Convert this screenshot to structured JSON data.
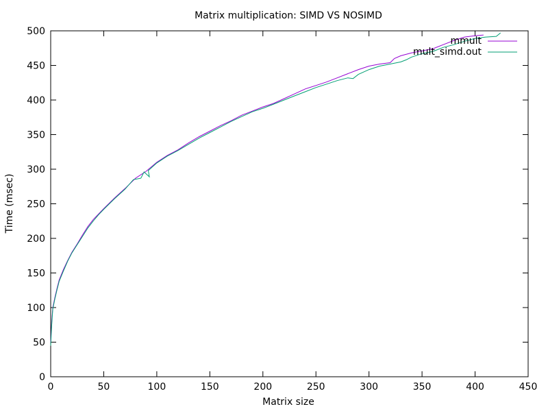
{
  "chart_data": {
    "type": "line",
    "title": "Matrix multiplication: SIMD VS NOSIMD",
    "xlabel": "Matrix size",
    "ylabel": "Time (msec)",
    "xlim": [
      0,
      450
    ],
    "ylim": [
      0,
      500
    ],
    "xticks": [
      "0",
      "50",
      "100",
      "150",
      "200",
      "250",
      "300",
      "350",
      "400",
      "450"
    ],
    "yticks": [
      "0",
      "50",
      "100",
      "150",
      "200",
      "250",
      "300",
      "350",
      "400",
      "450",
      "500"
    ],
    "grid": false,
    "legend": "top-right",
    "series": [
      {
        "name": "mmult",
        "color": "#9400d3",
        "points": [
          [
            0,
            50
          ],
          [
            1,
            80
          ],
          [
            2,
            100
          ],
          [
            4,
            115
          ],
          [
            6,
            128
          ],
          [
            8,
            140
          ],
          [
            12,
            155
          ],
          [
            16,
            168
          ],
          [
            20,
            180
          ],
          [
            25,
            192
          ],
          [
            30,
            205
          ],
          [
            35,
            217
          ],
          [
            40,
            227
          ],
          [
            45,
            235
          ],
          [
            50,
            243
          ],
          [
            60,
            258
          ],
          [
            70,
            272
          ],
          [
            80,
            287
          ],
          [
            90,
            297
          ],
          [
            100,
            310
          ],
          [
            110,
            320
          ],
          [
            120,
            328
          ],
          [
            130,
            338
          ],
          [
            140,
            347
          ],
          [
            150,
            355
          ],
          [
            160,
            363
          ],
          [
            170,
            370
          ],
          [
            180,
            378
          ],
          [
            190,
            384
          ],
          [
            200,
            390
          ],
          [
            210,
            395
          ],
          [
            220,
            402
          ],
          [
            230,
            409
          ],
          [
            240,
            416
          ],
          [
            250,
            421
          ],
          [
            260,
            426
          ],
          [
            270,
            432
          ],
          [
            280,
            438
          ],
          [
            290,
            444
          ],
          [
            300,
            449
          ],
          [
            310,
            452
          ],
          [
            320,
            454
          ],
          [
            324,
            460
          ],
          [
            330,
            464
          ],
          [
            340,
            468
          ],
          [
            350,
            471
          ],
          [
            360,
            474
          ],
          [
            370,
            480
          ],
          [
            380,
            486
          ],
          [
            390,
            491
          ],
          [
            400,
            493
          ],
          [
            408,
            494
          ]
        ]
      },
      {
        "name": "mult_simd.out",
        "color": "#009e73",
        "points": [
          [
            0,
            45
          ],
          [
            1,
            75
          ],
          [
            2,
            98
          ],
          [
            4,
            113
          ],
          [
            6,
            126
          ],
          [
            8,
            138
          ],
          [
            12,
            153
          ],
          [
            16,
            167
          ],
          [
            20,
            179
          ],
          [
            25,
            191
          ],
          [
            30,
            203
          ],
          [
            35,
            215
          ],
          [
            40,
            225
          ],
          [
            45,
            234
          ],
          [
            50,
            242
          ],
          [
            60,
            257
          ],
          [
            70,
            271
          ],
          [
            78,
            285
          ],
          [
            85,
            287
          ],
          [
            88,
            296
          ],
          [
            93,
            289
          ],
          [
            92,
            298
          ],
          [
            100,
            309
          ],
          [
            110,
            319
          ],
          [
            120,
            327
          ],
          [
            130,
            336
          ],
          [
            140,
            345
          ],
          [
            150,
            353
          ],
          [
            160,
            361
          ],
          [
            170,
            369
          ],
          [
            180,
            376
          ],
          [
            190,
            383
          ],
          [
            200,
            388
          ],
          [
            210,
            394
          ],
          [
            220,
            400
          ],
          [
            230,
            406
          ],
          [
            240,
            412
          ],
          [
            250,
            418
          ],
          [
            260,
            423
          ],
          [
            270,
            428
          ],
          [
            280,
            432
          ],
          [
            285,
            431
          ],
          [
            290,
            437
          ],
          [
            300,
            444
          ],
          [
            310,
            449
          ],
          [
            320,
            452
          ],
          [
            330,
            455
          ],
          [
            335,
            458
          ],
          [
            340,
            462
          ],
          [
            350,
            467
          ],
          [
            360,
            470
          ],
          [
            370,
            476
          ],
          [
            380,
            480
          ],
          [
            390,
            485
          ],
          [
            400,
            489
          ],
          [
            410,
            491
          ],
          [
            420,
            492
          ],
          [
            424,
            497
          ]
        ]
      }
    ]
  }
}
